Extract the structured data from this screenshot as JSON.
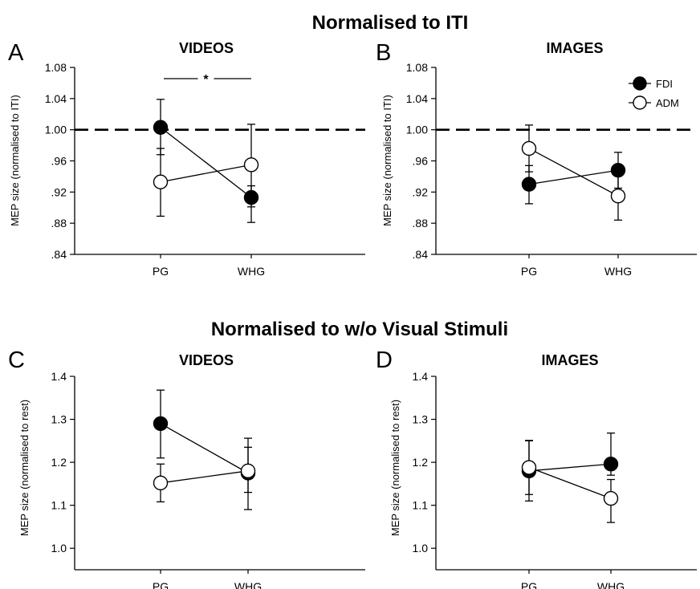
{
  "section_titles": [
    "Normalised to ITI",
    "Normalised to w/o Visual Stimuli"
  ],
  "colors": {
    "FDI": "#000000",
    "ADM": "#ffffff",
    "reference_line": "#000000"
  },
  "chart_data": [
    {
      "panel": "A",
      "type": "line",
      "title": "VIDEOS",
      "ylabel": "MEP size (normalised to ITI)",
      "categories": [
        "PG",
        "WHG"
      ],
      "ylim": [
        0.84,
        1.08
      ],
      "yticks": [
        ".84",
        ".88",
        ".92",
        ".96",
        "1.00",
        "1.04",
        "1.08"
      ],
      "reference_line": 1.0,
      "significance": {
        "label": "*",
        "between": [
          "PG",
          "WHG"
        ]
      },
      "series": [
        {
          "name": "FDI",
          "marker": "filled",
          "values": [
            1.003,
            0.913
          ],
          "err_upper": [
            1.039,
            0.928
          ],
          "err_lower": [
            0.968,
            0.881
          ]
        },
        {
          "name": "ADM",
          "marker": "open",
          "values": [
            0.933,
            0.955
          ],
          "err_upper": [
            0.976,
            1.007
          ],
          "err_lower": [
            0.889,
            0.901
          ]
        }
      ]
    },
    {
      "panel": "B",
      "type": "line",
      "title": "IMAGES",
      "ylabel": "MEP size (normalised to ITI)",
      "categories": [
        "PG",
        "WHG"
      ],
      "ylim": [
        0.84,
        1.08
      ],
      "yticks": [
        ".84",
        ".88",
        ".92",
        ".96",
        "1.00",
        "1.04",
        "1.08"
      ],
      "reference_line": 1.0,
      "legend": {
        "position": "top-right",
        "entries": [
          "FDI",
          "ADM"
        ]
      },
      "series": [
        {
          "name": "FDI",
          "marker": "filled",
          "values": [
            0.93,
            0.948
          ],
          "err_upper": [
            0.954,
            0.971
          ],
          "err_lower": [
            0.905,
            0.925
          ]
        },
        {
          "name": "ADM",
          "marker": "open",
          "values": [
            0.976,
            0.915
          ],
          "err_upper": [
            1.006,
            0.946
          ],
          "err_lower": [
            0.946,
            0.884
          ]
        }
      ]
    },
    {
      "panel": "C",
      "type": "line",
      "title": "VIDEOS",
      "ylabel": "MEP size (normalised to rest)",
      "categories": [
        "PG",
        "WHG"
      ],
      "ylim": [
        0.95,
        1.4
      ],
      "yticks": [
        "1.0",
        "1.1",
        "1.2",
        "1.3",
        "1.4"
      ],
      "series": [
        {
          "name": "FDI",
          "marker": "filled",
          "values": [
            1.29,
            1.175
          ],
          "err_upper": [
            1.368,
            1.235
          ],
          "err_lower": [
            1.21,
            1.13
          ]
        },
        {
          "name": "ADM",
          "marker": "open",
          "values": [
            1.152,
            1.18
          ],
          "err_upper": [
            1.196,
            1.256
          ],
          "err_lower": [
            1.108,
            1.09
          ]
        }
      ]
    },
    {
      "panel": "D",
      "type": "line",
      "title": "IMAGES",
      "ylabel": "MEP size (normalised to rest)",
      "categories": [
        "PG",
        "WHG"
      ],
      "ylim": [
        0.95,
        1.4
      ],
      "yticks": [
        "1.0",
        "1.1",
        "1.2",
        "1.3",
        "1.4"
      ],
      "series": [
        {
          "name": "FDI",
          "marker": "filled",
          "values": [
            1.18,
            1.196
          ],
          "err_upper": [
            1.251,
            1.268
          ],
          "err_lower": [
            1.11,
            1.17
          ]
        },
        {
          "name": "ADM",
          "marker": "open",
          "values": [
            1.188,
            1.116
          ],
          "err_upper": [
            1.25,
            1.16
          ],
          "err_lower": [
            1.125,
            1.06
          ]
        }
      ]
    }
  ]
}
